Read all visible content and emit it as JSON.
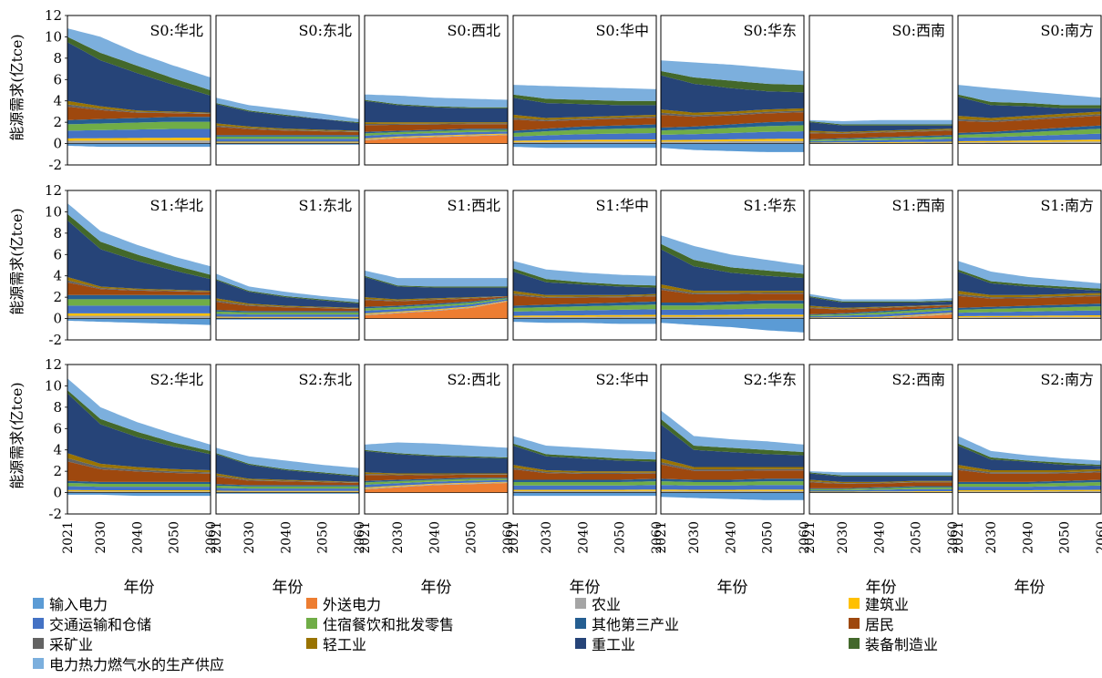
{
  "chart_data": {
    "type": "area",
    "chart_kind": "stacked area (small multiples, 3 scenarios x 7 regions)",
    "ylabel": "能源需求(亿tce)",
    "xlabel": "年份",
    "ylim": [
      -2,
      12
    ],
    "yticks": [
      -2,
      0,
      2,
      4,
      6,
      8,
      10,
      12
    ],
    "xticks": [
      "2021",
      "2030",
      "2040",
      "2050",
      "2060"
    ],
    "x": [
      2021,
      2030,
      2040,
      2050,
      2060
    ],
    "grid": false,
    "legend_position": "bottom",
    "scenarios": [
      "S0",
      "S1",
      "S2"
    ],
    "regions": [
      "华北",
      "东北",
      "西北",
      "华中",
      "华东",
      "西南",
      "南方"
    ],
    "series_legend": [
      {
        "name": "输入电力",
        "color": "#5B9BD5"
      },
      {
        "name": "外送电力",
        "color": "#ED7D31"
      },
      {
        "name": "农业",
        "color": "#A5A5A5"
      },
      {
        "name": "建筑业",
        "color": "#FFC000"
      },
      {
        "name": "交通运输和仓储",
        "color": "#4472C4"
      },
      {
        "name": "住宿餐饮和批发零售",
        "color": "#70AD47"
      },
      {
        "name": "其他第三产业",
        "color": "#255E91"
      },
      {
        "name": "居民",
        "color": "#9E480E"
      },
      {
        "name": "采矿业",
        "color": "#636363"
      },
      {
        "name": "轻工业",
        "color": "#997300"
      },
      {
        "name": "重工业",
        "color": "#264478"
      },
      {
        "name": "装备制造业",
        "color": "#43682B"
      },
      {
        "name": "电力热力燃气水的生产供应",
        "color": "#7CAFDD"
      }
    ],
    "panels": [
      {
        "title": "S0:华北",
        "neg": [
          -0.2,
          -0.3,
          -0.3,
          -0.3,
          -0.3
        ],
        "orange": [
          0,
          0,
          0,
          0,
          0
        ],
        "low": [
          2.2,
          2.3,
          2.4,
          2.5,
          2.5
        ],
        "tot": [
          4.0,
          3.5,
          3.1,
          3.0,
          2.9
        ],
        "heavy": [
          9.5,
          7.8,
          6.6,
          5.5,
          4.5
        ],
        "equip": [
          10.0,
          8.5,
          7.3,
          6.1,
          5.0
        ],
        "top": [
          10.8,
          10.0,
          8.5,
          7.3,
          6.2
        ]
      },
      {
        "title": "S0:东北",
        "neg": [
          -0.1,
          -0.1,
          -0.1,
          -0.1,
          -0.1
        ],
        "orange": [
          0,
          0,
          0,
          0,
          0
        ],
        "low": [
          0.8,
          0.8,
          0.8,
          0.8,
          0.8
        ],
        "tot": [
          1.9,
          1.6,
          1.4,
          1.3,
          1.2
        ],
        "heavy": [
          3.7,
          3.0,
          2.6,
          2.3,
          1.9
        ],
        "equip": [
          3.8,
          3.1,
          2.7,
          2.3,
          2.0
        ],
        "top": [
          4.3,
          3.6,
          3.2,
          2.8,
          2.3
        ]
      },
      {
        "title": "S0:西北",
        "neg": [
          0,
          0,
          0,
          0,
          0
        ],
        "orange": [
          0.3,
          0.5,
          0.6,
          0.7,
          0.8
        ],
        "low": [
          1.1,
          1.2,
          1.3,
          1.4,
          1.4
        ],
        "tot": [
          2.0,
          2.0,
          2.0,
          2.0,
          2.0
        ],
        "heavy": [
          4.0,
          3.6,
          3.4,
          3.3,
          3.3
        ],
        "equip": [
          4.1,
          3.7,
          3.5,
          3.4,
          3.4
        ],
        "top": [
          4.6,
          4.5,
          4.3,
          4.2,
          4.1
        ]
      },
      {
        "title": "S0:华中",
        "neg": [
          -0.3,
          -0.4,
          -0.4,
          -0.4,
          -0.4
        ],
        "orange": [
          0,
          0,
          0,
          0,
          0
        ],
        "low": [
          1.2,
          1.4,
          1.6,
          1.7,
          1.8
        ],
        "tot": [
          2.7,
          2.4,
          2.5,
          2.6,
          2.7
        ],
        "heavy": [
          4.3,
          3.8,
          3.7,
          3.6,
          3.6
        ],
        "equip": [
          4.6,
          4.2,
          4.1,
          4.0,
          4.0
        ],
        "top": [
          5.5,
          5.4,
          5.3,
          5.2,
          5.1
        ]
      },
      {
        "title": "S0:华东",
        "neg": [
          -0.4,
          -0.6,
          -0.7,
          -0.8,
          -0.8
        ],
        "orange": [
          0,
          0,
          0,
          0,
          0
        ],
        "low": [
          1.5,
          1.6,
          1.8,
          2.0,
          2.1
        ],
        "tot": [
          3.2,
          2.9,
          3.0,
          3.2,
          3.3
        ],
        "heavy": [
          6.4,
          5.6,
          5.2,
          4.9,
          4.8
        ],
        "equip": [
          6.8,
          6.2,
          5.9,
          5.6,
          5.5
        ],
        "top": [
          7.8,
          7.6,
          7.4,
          7.1,
          6.8
        ]
      },
      {
        "title": "S0:西南",
        "neg": [
          0,
          0,
          0,
          0,
          0
        ],
        "orange": [
          0,
          0,
          0,
          0,
          0
        ],
        "low": [
          0.4,
          0.5,
          0.6,
          0.7,
          0.8
        ],
        "tot": [
          1.2,
          1.1,
          1.2,
          1.3,
          1.4
        ],
        "heavy": [
          2.0,
          1.7,
          1.7,
          1.7,
          1.7
        ],
        "equip": [
          2.1,
          1.8,
          1.8,
          1.8,
          1.8
        ],
        "top": [
          2.2,
          2.1,
          2.2,
          2.2,
          2.2
        ]
      },
      {
        "title": "S0:南方",
        "neg": [
          0,
          0,
          0,
          0,
          0
        ],
        "orange": [
          0,
          0,
          0,
          0,
          0
        ],
        "low": [
          1.0,
          1.1,
          1.3,
          1.5,
          1.7
        ],
        "tot": [
          2.6,
          2.4,
          2.6,
          2.8,
          3.0
        ],
        "heavy": [
          4.4,
          3.6,
          3.5,
          3.3,
          3.3
        ],
        "equip": [
          4.6,
          3.9,
          3.8,
          3.6,
          3.6
        ],
        "top": [
          5.5,
          5.2,
          4.9,
          4.6,
          4.3
        ]
      },
      {
        "title": "S1:华北",
        "neg": [
          -0.2,
          -0.3,
          -0.4,
          -0.5,
          -0.6
        ],
        "orange": [
          0,
          0,
          0,
          0,
          0
        ],
        "low": [
          2.2,
          2.2,
          2.2,
          2.2,
          2.2
        ],
        "tot": [
          3.9,
          3.0,
          2.8,
          2.7,
          2.6
        ],
        "heavy": [
          9.2,
          6.5,
          5.4,
          4.5,
          3.7
        ],
        "equip": [
          9.8,
          7.2,
          6.0,
          5.0,
          4.1
        ],
        "top": [
          10.8,
          8.2,
          6.9,
          5.8,
          4.9
        ]
      },
      {
        "title": "S1:东北",
        "neg": [
          -0.1,
          -0.1,
          -0.1,
          -0.1,
          -0.1
        ],
        "orange": [
          0,
          0,
          0,
          0,
          0
        ],
        "low": [
          0.8,
          0.7,
          0.7,
          0.7,
          0.7
        ],
        "tot": [
          1.9,
          1.4,
          1.2,
          1.1,
          1.0
        ],
        "heavy": [
          3.6,
          2.5,
          2.0,
          1.7,
          1.4
        ],
        "equip": [
          3.7,
          2.6,
          2.1,
          1.8,
          1.5
        ],
        "top": [
          4.2,
          3.0,
          2.5,
          2.1,
          1.8
        ]
      },
      {
        "title": "S1:西北",
        "neg": [
          0,
          0,
          0,
          0,
          0
        ],
        "orange": [
          0.3,
          0.5,
          0.7,
          1.0,
          1.6
        ],
        "low": [
          1.1,
          1.2,
          1.4,
          1.6,
          2.0
        ],
        "tot": [
          2.0,
          1.8,
          1.9,
          2.0,
          2.1
        ],
        "heavy": [
          3.9,
          3.0,
          2.9,
          2.9,
          2.9
        ],
        "equip": [
          4.0,
          3.1,
          3.0,
          3.0,
          3.0
        ],
        "top": [
          4.5,
          3.8,
          3.8,
          3.8,
          3.8
        ]
      },
      {
        "title": "S1:华中",
        "neg": [
          -0.3,
          -0.4,
          -0.4,
          -0.5,
          -0.5
        ],
        "orange": [
          0,
          0,
          0,
          0,
          0
        ],
        "low": [
          1.2,
          1.3,
          1.4,
          1.5,
          1.6
        ],
        "tot": [
          2.6,
          2.2,
          2.2,
          2.2,
          2.3
        ],
        "heavy": [
          4.4,
          3.4,
          3.2,
          3.0,
          2.9
        ],
        "equip": [
          4.7,
          3.7,
          3.4,
          3.2,
          3.1
        ],
        "top": [
          5.4,
          4.6,
          4.3,
          4.1,
          4.0
        ]
      },
      {
        "title": "S1:华东",
        "neg": [
          -0.4,
          -0.6,
          -0.8,
          -1.1,
          -1.3
        ],
        "orange": [
          0,
          0,
          0,
          0,
          0
        ],
        "low": [
          1.5,
          1.5,
          1.6,
          1.7,
          1.7
        ],
        "tot": [
          3.2,
          2.6,
          2.6,
          2.6,
          2.6
        ],
        "heavy": [
          6.5,
          4.9,
          4.3,
          4.0,
          3.8
        ],
        "equip": [
          7.0,
          5.5,
          4.8,
          4.5,
          4.2
        ],
        "top": [
          7.8,
          6.8,
          6.0,
          5.5,
          5.0
        ]
      },
      {
        "title": "S1:西南",
        "neg": [
          0,
          0,
          0,
          0,
          0
        ],
        "orange": [
          0,
          0,
          0,
          0.2,
          0.4
        ],
        "low": [
          0.4,
          0.5,
          0.7,
          0.9,
          1.1
        ],
        "tot": [
          1.2,
          1.0,
          1.1,
          1.2,
          1.3
        ],
        "heavy": [
          2.0,
          1.5,
          1.5,
          1.5,
          1.6
        ],
        "equip": [
          2.1,
          1.6,
          1.6,
          1.6,
          1.7
        ],
        "top": [
          2.3,
          1.8,
          1.8,
          1.8,
          1.9
        ]
      },
      {
        "title": "S1:南方",
        "neg": [
          0,
          0,
          0,
          0,
          0
        ],
        "orange": [
          0,
          0,
          0,
          0,
          0
        ],
        "low": [
          1.0,
          1.1,
          1.2,
          1.3,
          1.4
        ],
        "tot": [
          2.6,
          2.2,
          2.2,
          2.3,
          2.4
        ],
        "heavy": [
          4.4,
          3.3,
          3.0,
          2.8,
          2.6
        ],
        "equip": [
          4.6,
          3.5,
          3.2,
          3.0,
          2.8
        ],
        "top": [
          5.4,
          4.4,
          3.9,
          3.6,
          3.3
        ]
      },
      {
        "title": "S2:华北",
        "neg": [
          -0.2,
          -0.2,
          -0.3,
          -0.3,
          -0.3
        ],
        "orange": [
          0,
          0,
          0,
          0,
          0
        ],
        "low": [
          1.1,
          1.0,
          1.0,
          1.0,
          1.0
        ],
        "tot": [
          3.7,
          2.7,
          2.4,
          2.2,
          2.1
        ],
        "heavy": [
          9.3,
          6.4,
          5.2,
          4.3,
          3.6
        ],
        "equip": [
          9.6,
          6.9,
          5.7,
          4.7,
          3.9
        ],
        "top": [
          10.7,
          8.0,
          6.6,
          5.5,
          4.5
        ]
      },
      {
        "title": "S2:东北",
        "neg": [
          -0.1,
          -0.1,
          -0.1,
          -0.1,
          -0.1
        ],
        "orange": [
          0,
          0,
          0,
          0,
          0
        ],
        "low": [
          0.8,
          0.7,
          0.7,
          0.7,
          0.7
        ],
        "tot": [
          1.8,
          1.3,
          1.2,
          1.1,
          1.0
        ],
        "heavy": [
          3.6,
          2.6,
          2.1,
          1.8,
          1.5
        ],
        "equip": [
          3.7,
          2.7,
          2.2,
          1.9,
          1.6
        ],
        "top": [
          4.2,
          3.4,
          3.0,
          2.6,
          2.3
        ]
      },
      {
        "title": "S2:西北",
        "neg": [
          0,
          0,
          0,
          0,
          0
        ],
        "orange": [
          0.3,
          0.5,
          0.7,
          0.8,
          0.9
        ],
        "low": [
          1.1,
          1.2,
          1.3,
          1.4,
          1.4
        ],
        "tot": [
          1.9,
          1.8,
          1.8,
          1.8,
          1.8
        ],
        "heavy": [
          3.9,
          3.6,
          3.4,
          3.3,
          3.2
        ],
        "equip": [
          4.0,
          3.7,
          3.5,
          3.4,
          3.3
        ],
        "top": [
          4.5,
          4.7,
          4.6,
          4.4,
          4.2
        ]
      },
      {
        "title": "S2:华中",
        "neg": [
          -0.3,
          -0.3,
          -0.3,
          -0.3,
          -0.3
        ],
        "orange": [
          0,
          0,
          0,
          0,
          0
        ],
        "low": [
          1.2,
          1.2,
          1.2,
          1.2,
          1.3
        ],
        "tot": [
          2.6,
          2.1,
          2.0,
          2.0,
          2.0
        ],
        "heavy": [
          4.4,
          3.4,
          3.2,
          3.0,
          2.9
        ],
        "equip": [
          4.6,
          3.6,
          3.4,
          3.2,
          3.1
        ],
        "top": [
          5.3,
          4.4,
          4.2,
          4.0,
          3.8
        ]
      },
      {
        "title": "S2:华东",
        "neg": [
          -0.4,
          -0.5,
          -0.6,
          -0.7,
          -0.7
        ],
        "orange": [
          0,
          0,
          0,
          0,
          0
        ],
        "low": [
          1.3,
          1.2,
          1.2,
          1.3,
          1.3
        ],
        "tot": [
          3.2,
          2.4,
          2.4,
          2.4,
          2.4
        ],
        "heavy": [
          6.4,
          4.0,
          3.8,
          3.6,
          3.5
        ],
        "equip": [
          6.9,
          4.4,
          4.2,
          4.0,
          3.8
        ],
        "top": [
          7.7,
          5.3,
          5.0,
          4.8,
          4.5
        ]
      },
      {
        "title": "S2:西南",
        "neg": [
          0,
          0,
          0,
          0,
          0
        ],
        "orange": [
          0,
          0,
          0,
          0,
          0
        ],
        "low": [
          0.4,
          0.4,
          0.5,
          0.6,
          0.6
        ],
        "tot": [
          1.2,
          1.0,
          1.0,
          1.1,
          1.1
        ],
        "heavy": [
          1.8,
          1.5,
          1.5,
          1.5,
          1.5
        ],
        "equip": [
          1.9,
          1.6,
          1.6,
          1.6,
          1.6
        ],
        "top": [
          2.0,
          1.9,
          1.9,
          1.9,
          1.9
        ]
      },
      {
        "title": "S2:南方",
        "neg": [
          0,
          0,
          0,
          0,
          0
        ],
        "orange": [
          0,
          0,
          0,
          0,
          0
        ],
        "low": [
          1.0,
          1.0,
          1.0,
          1.1,
          1.2
        ],
        "tot": [
          2.6,
          2.1,
          2.1,
          2.1,
          2.2
        ],
        "heavy": [
          4.4,
          3.1,
          2.9,
          2.6,
          2.5
        ],
        "equip": [
          4.6,
          3.3,
          3.0,
          2.8,
          2.6
        ],
        "top": [
          5.3,
          3.9,
          3.5,
          3.2,
          3.0
        ]
      }
    ]
  }
}
